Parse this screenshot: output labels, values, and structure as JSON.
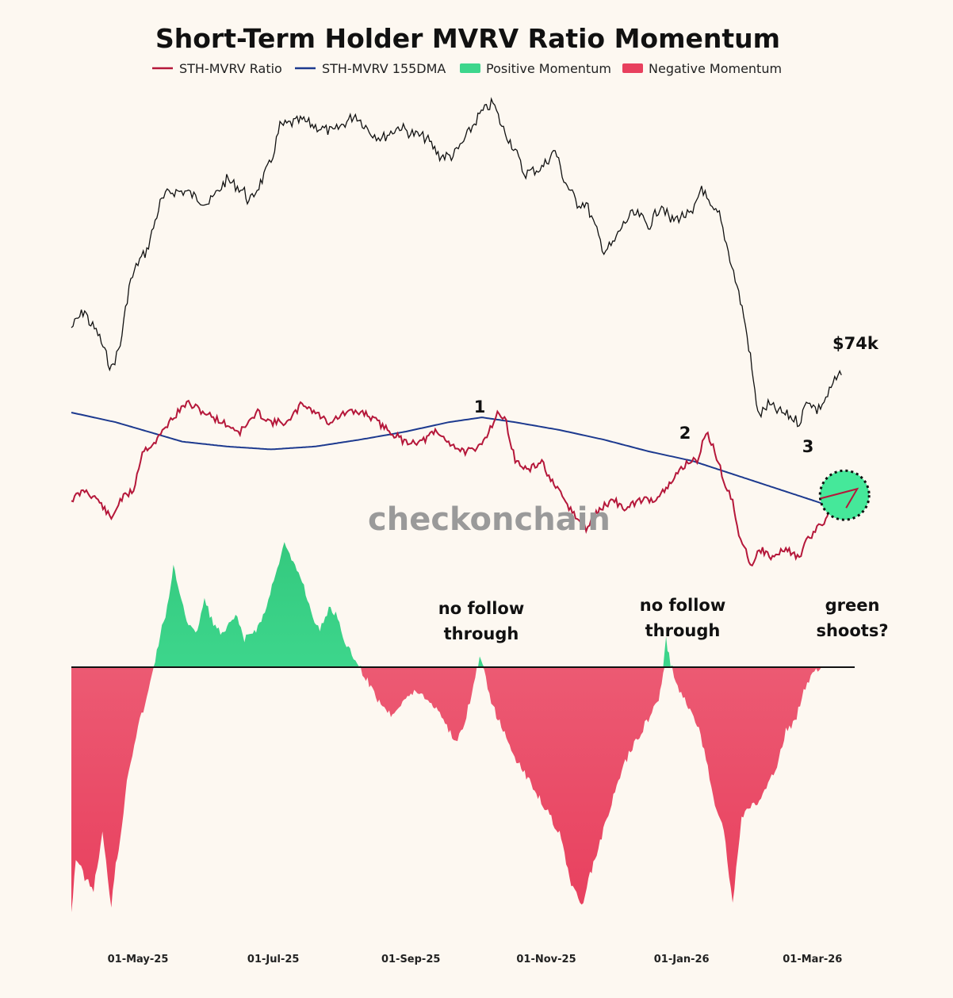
{
  "chart_data": {
    "type": "line",
    "title": "Short-Term Holder MVRV Ratio Momentum",
    "legend": [
      {
        "name": "STH-MVRV Ratio",
        "color": "#b5173a",
        "kind": "line"
      },
      {
        "name": "STH-MVRV 155DMA",
        "color": "#1d3a8f",
        "kind": "line"
      },
      {
        "name": "Positive Momentum",
        "color": "#3dd68c",
        "kind": "box"
      },
      {
        "name": "Negative Momentum",
        "color": "#e8405e",
        "kind": "box"
      }
    ],
    "x_ticks": [
      "01-May-25",
      "01-Jul-25",
      "01-Sep-25",
      "01-Nov-25",
      "01-Jan-26",
      "01-Mar-26"
    ],
    "x_tick_days": [
      30,
      91,
      153,
      214,
      275,
      334
    ],
    "x_range_days": [
      0,
      353
    ],
    "price_label": "$74k",
    "series": [
      {
        "name": "BTC Price",
        "color": "#111111",
        "unit": "USD thousands",
        "points": [
          [
            0,
            83
          ],
          [
            6,
            86
          ],
          [
            8,
            84
          ],
          [
            12,
            82
          ],
          [
            18,
            76
          ],
          [
            22,
            80
          ],
          [
            26,
            90
          ],
          [
            30,
            94
          ],
          [
            34,
            96
          ],
          [
            40,
            104
          ],
          [
            44,
            106
          ],
          [
            52,
            106
          ],
          [
            56,
            105
          ],
          [
            62,
            104
          ],
          [
            70,
            108
          ],
          [
            74,
            107
          ],
          [
            78,
            106
          ],
          [
            80,
            104
          ],
          [
            86,
            108
          ],
          [
            90,
            111
          ],
          [
            94,
            117
          ],
          [
            104,
            118
          ],
          [
            110,
            117
          ],
          [
            118,
            116
          ],
          [
            128,
            119
          ],
          [
            135,
            116
          ],
          [
            140,
            115
          ],
          [
            148,
            117
          ],
          [
            152,
            116
          ],
          [
            160,
            115
          ],
          [
            166,
            112
          ],
          [
            172,
            112
          ],
          [
            176,
            114
          ],
          [
            184,
            119
          ],
          [
            190,
            121
          ],
          [
            194,
            117
          ],
          [
            200,
            113
          ],
          [
            204,
            109
          ],
          [
            212,
            110
          ],
          [
            218,
            113
          ],
          [
            222,
            108
          ],
          [
            228,
            104
          ],
          [
            232,
            104
          ],
          [
            236,
            100
          ],
          [
            240,
            96
          ],
          [
            244,
            97
          ],
          [
            248,
            100
          ],
          [
            252,
            102
          ],
          [
            256,
            102
          ],
          [
            260,
            100
          ],
          [
            266,
            104
          ],
          [
            270,
            101
          ],
          [
            276,
            102
          ],
          [
            280,
            102
          ],
          [
            284,
            107
          ],
          [
            288,
            103
          ],
          [
            292,
            102
          ],
          [
            296,
            96
          ],
          [
            300,
            90
          ],
          [
            303,
            85
          ],
          [
            306,
            78
          ],
          [
            308,
            72
          ],
          [
            310,
            68
          ],
          [
            314,
            70
          ],
          [
            318,
            69
          ],
          [
            324,
            68
          ],
          [
            328,
            67
          ],
          [
            332,
            71
          ],
          [
            336,
            69
          ],
          [
            340,
            71
          ],
          [
            344,
            74
          ],
          [
            347,
            75
          ]
        ]
      },
      {
        "name": "STH-MVRV Ratio",
        "color": "#b5173a",
        "points": [
          [
            0,
            0.95
          ],
          [
            6,
            0.96
          ],
          [
            12,
            0.95
          ],
          [
            18,
            0.93
          ],
          [
            22,
            0.95
          ],
          [
            28,
            0.96
          ],
          [
            32,
            1.0
          ],
          [
            38,
            1.01
          ],
          [
            44,
            1.03
          ],
          [
            52,
            1.05
          ],
          [
            60,
            1.04
          ],
          [
            68,
            1.03
          ],
          [
            76,
            1.02
          ],
          [
            84,
            1.04
          ],
          [
            90,
            1.03
          ],
          [
            98,
            1.03
          ],
          [
            104,
            1.05
          ],
          [
            110,
            1.04
          ],
          [
            116,
            1.03
          ],
          [
            124,
            1.04
          ],
          [
            132,
            1.04
          ],
          [
            138,
            1.03
          ],
          [
            144,
            1.02
          ],
          [
            150,
            1.01
          ],
          [
            158,
            1.01
          ],
          [
            164,
            1.02
          ],
          [
            170,
            1.01
          ],
          [
            176,
            1.0
          ],
          [
            182,
            1.0
          ],
          [
            188,
            1.02
          ],
          [
            192,
            1.04
          ],
          [
            196,
            1.03
          ],
          [
            200,
            0.99
          ],
          [
            206,
            0.98
          ],
          [
            212,
            0.99
          ],
          [
            216,
            0.97
          ],
          [
            222,
            0.95
          ],
          [
            228,
            0.93
          ],
          [
            232,
            0.92
          ],
          [
            238,
            0.94
          ],
          [
            244,
            0.95
          ],
          [
            250,
            0.94
          ],
          [
            256,
            0.95
          ],
          [
            262,
            0.95
          ],
          [
            268,
            0.96
          ],
          [
            274,
            0.98
          ],
          [
            278,
            0.99
          ],
          [
            282,
            0.99
          ],
          [
            286,
            1.02
          ],
          [
            290,
            1.0
          ],
          [
            294,
            0.97
          ],
          [
            298,
            0.95
          ],
          [
            300,
            0.92
          ],
          [
            304,
            0.9
          ],
          [
            306,
            0.88
          ],
          [
            310,
            0.9
          ],
          [
            316,
            0.89
          ],
          [
            322,
            0.9
          ],
          [
            328,
            0.89
          ],
          [
            332,
            0.91
          ],
          [
            336,
            0.92
          ],
          [
            340,
            0.93
          ],
          [
            342,
            0.94
          ]
        ]
      },
      {
        "name": "STH-MVRV 155DMA",
        "color": "#1d3a8f",
        "points": [
          [
            0,
            1.04
          ],
          [
            20,
            1.03
          ],
          [
            35,
            1.02
          ],
          [
            50,
            1.01
          ],
          [
            70,
            1.005
          ],
          [
            90,
            1.002
          ],
          [
            110,
            1.005
          ],
          [
            130,
            1.012
          ],
          [
            150,
            1.02
          ],
          [
            170,
            1.03
          ],
          [
            185,
            1.035
          ],
          [
            200,
            1.03
          ],
          [
            220,
            1.022
          ],
          [
            240,
            1.012
          ],
          [
            260,
            1.0
          ],
          [
            280,
            0.99
          ],
          [
            300,
            0.975
          ],
          [
            320,
            0.96
          ],
          [
            340,
            0.945
          ],
          [
            345,
            0.942
          ]
        ]
      },
      {
        "name": "Momentum",
        "color_positive": "#3dd68c",
        "color_negative": "#e8405e",
        "points": [
          [
            0,
            -6.2
          ],
          [
            2,
            -4.8
          ],
          [
            6,
            -5.3
          ],
          [
            10,
            -5.6
          ],
          [
            14,
            -4.2
          ],
          [
            18,
            -6.0
          ],
          [
            20,
            -4.9
          ],
          [
            22,
            -4.4
          ],
          [
            25,
            -2.8
          ],
          [
            30,
            -1.5
          ],
          [
            34,
            -0.8
          ],
          [
            40,
            0.8
          ],
          [
            44,
            1.7
          ],
          [
            46,
            2.5
          ],
          [
            48,
            2.1
          ],
          [
            52,
            1.2
          ],
          [
            56,
            0.8
          ],
          [
            60,
            1.7
          ],
          [
            64,
            1.1
          ],
          [
            68,
            0.8
          ],
          [
            74,
            1.3
          ],
          [
            78,
            0.7
          ],
          [
            84,
            1.0
          ],
          [
            88,
            1.5
          ],
          [
            92,
            2.4
          ],
          [
            96,
            3.1
          ],
          [
            100,
            2.6
          ],
          [
            104,
            2.2
          ],
          [
            108,
            1.4
          ],
          [
            112,
            0.9
          ],
          [
            116,
            1.5
          ],
          [
            120,
            1.3
          ],
          [
            124,
            0.5
          ],
          [
            128,
            0.2
          ],
          [
            132,
            -0.2
          ],
          [
            138,
            -0.8
          ],
          [
            144,
            -1.2
          ],
          [
            150,
            -0.8
          ],
          [
            156,
            -0.6
          ],
          [
            160,
            -0.8
          ],
          [
            166,
            -1.1
          ],
          [
            170,
            -1.6
          ],
          [
            174,
            -1.9
          ],
          [
            178,
            -1.2
          ],
          [
            182,
            -0.3
          ],
          [
            184,
            0.3
          ],
          [
            186,
            -0.1
          ],
          [
            190,
            -1.0
          ],
          [
            196,
            -1.8
          ],
          [
            202,
            -2.5
          ],
          [
            208,
            -3.0
          ],
          [
            214,
            -3.6
          ],
          [
            220,
            -4.2
          ],
          [
            226,
            -5.6
          ],
          [
            230,
            -6.0
          ],
          [
            236,
            -4.8
          ],
          [
            242,
            -3.7
          ],
          [
            248,
            -2.6
          ],
          [
            252,
            -2.1
          ],
          [
            256,
            -1.7
          ],
          [
            260,
            -1.3
          ],
          [
            264,
            -0.9
          ],
          [
            266,
            -0.5
          ],
          [
            268,
            0.7
          ],
          [
            270,
            0.1
          ],
          [
            274,
            -0.6
          ],
          [
            278,
            -1.0
          ],
          [
            282,
            -1.4
          ],
          [
            286,
            -2.3
          ],
          [
            290,
            -3.4
          ],
          [
            294,
            -4.1
          ],
          [
            298,
            -6.0
          ],
          [
            302,
            -3.8
          ],
          [
            306,
            -3.5
          ],
          [
            310,
            -3.4
          ],
          [
            314,
            -3.0
          ],
          [
            318,
            -2.5
          ],
          [
            322,
            -1.6
          ],
          [
            326,
            -1.4
          ],
          [
            330,
            -0.6
          ],
          [
            334,
            -0.1
          ],
          [
            338,
            0.0
          ]
        ]
      }
    ],
    "annotations": {
      "markers": [
        "1",
        "2",
        "3"
      ],
      "note_1": [
        "no follow",
        "through"
      ],
      "note_2": [
        "no follow",
        "through"
      ],
      "note_3": [
        "green",
        "shoots?"
      ]
    },
    "watermark": "checkonchain"
  }
}
